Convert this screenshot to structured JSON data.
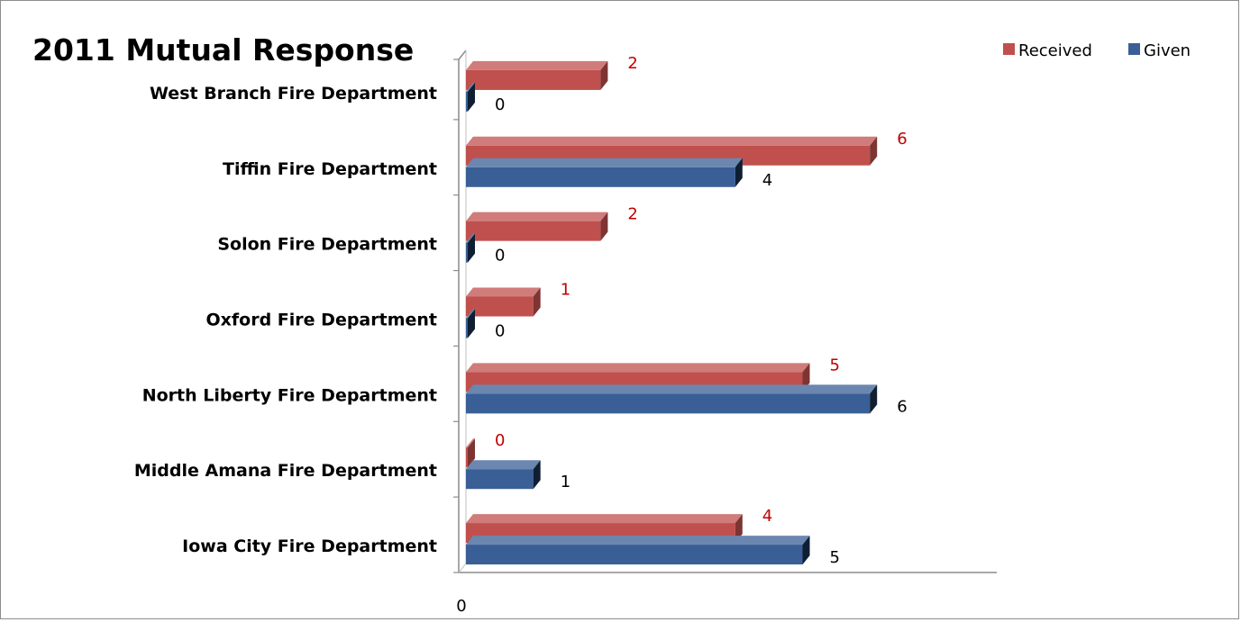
{
  "chart_data": {
    "type": "bar",
    "orientation": "horizontal",
    "title": "2011 Mutual Response",
    "categories": [
      "West Branch Fire Department",
      "Tiffin Fire Department",
      "Solon Fire Department",
      "Oxford Fire Department",
      "North Liberty Fire Department",
      "Middle Amana Fire Department",
      "Iowa City Fire Department"
    ],
    "series": [
      {
        "name": "Received",
        "values": [
          2,
          6,
          2,
          1,
          5,
          0,
          4
        ],
        "color": "#c0504d"
      },
      {
        "name": "Given",
        "values": [
          0,
          4,
          0,
          0,
          6,
          1,
          5
        ],
        "color": "#3a5f96"
      }
    ],
    "x_tick_labels": [
      "0"
    ],
    "xlim": [
      0,
      8
    ],
    "legend_position": "top-right",
    "grid": false
  }
}
